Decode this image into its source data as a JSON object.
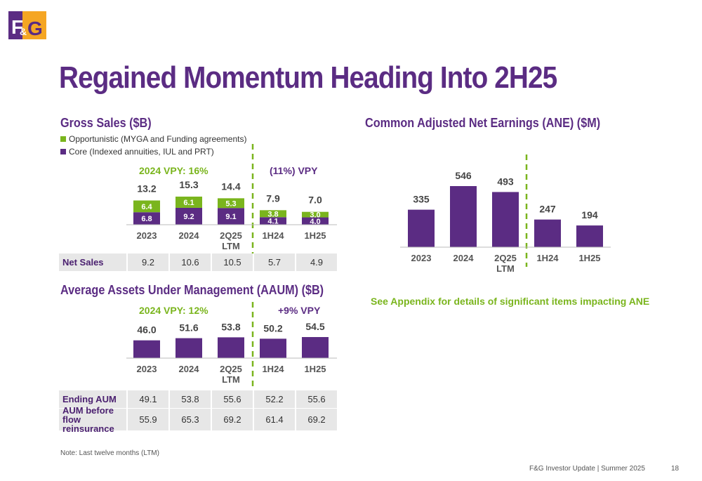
{
  "header": {
    "logo_text": "F&G",
    "title": "Regained Momentum Heading Into 2H25"
  },
  "gross_sales": {
    "title": "Gross Sales ($B)",
    "legend_opportunistic": "Opportunistic (MYGA and Funding agreements)",
    "legend_core": "Core (Indexed annuities, IUL and PRT)",
    "note_left": "2024 VPY: 16%",
    "note_right": "(11%) VPY",
    "net_sales_label": "Net Sales",
    "net_sales": [
      "9.2",
      "10.6",
      "10.5",
      "5.7",
      "4.9"
    ]
  },
  "aaum": {
    "title": "Average Assets Under Management (AAUM) ($B)",
    "note_left": "2024 VPY: 12%",
    "note_right": "+9% VPY",
    "ending_aum_label": "Ending AUM",
    "ending_aum": [
      "49.1",
      "53.8",
      "55.6",
      "52.2",
      "55.6"
    ],
    "aum_before_label": "AUM before flow reinsurance",
    "aum_before": [
      "55.9",
      "65.3",
      "69.2",
      "61.4",
      "69.2"
    ]
  },
  "ane": {
    "title": "Common Adjusted Net Earnings (ANE) ($M)",
    "appendix_note": "See Appendix for details of significant items impacting ANE"
  },
  "footer": {
    "note": "Note: Last twelve months (LTM)",
    "source": "F&G Investor Update | Summer 2025",
    "page": "18"
  },
  "colors": {
    "purple": "#5b2c83",
    "green": "#7ab51d",
    "logo_orange": "#f5a623"
  },
  "chart_data": [
    {
      "type": "bar",
      "stacked": true,
      "title": "Gross Sales ($B)",
      "categories": [
        "2023",
        "2024",
        "2Q25 LTM",
        "1H24",
        "1H25"
      ],
      "totals": [
        "13.2",
        "15.3",
        "14.4",
        "7.9",
        "7.0"
      ],
      "series": [
        {
          "name": "Core (Indexed annuities, IUL and PRT)",
          "values": [
            6.8,
            9.2,
            9.1,
            4.1,
            4.0
          ]
        },
        {
          "name": "Opportunistic (MYGA and Funding agreements)",
          "values": [
            6.4,
            6.1,
            5.3,
            3.8,
            3.0
          ]
        }
      ],
      "labels": {
        "core": [
          "6.8",
          "9.2",
          "9.1",
          "4.1",
          "4.0"
        ],
        "opportunistic": [
          "6.4",
          "6.1",
          "5.3",
          "3.8",
          "3.0"
        ]
      },
      "ylim": [
        0,
        15.3
      ],
      "legend": "top-left"
    },
    {
      "type": "bar",
      "title": "Average Assets Under Management (AAUM) ($B)",
      "categories": [
        "2023",
        "2024",
        "2Q25 LTM",
        "1H24",
        "1H25"
      ],
      "values": [
        46.0,
        51.6,
        53.8,
        50.2,
        54.5
      ],
      "labels": [
        "46.0",
        "51.6",
        "53.8",
        "50.2",
        "54.5"
      ],
      "ylim": [
        0,
        54.5
      ]
    },
    {
      "type": "bar",
      "title": "Common Adjusted Net Earnings (ANE) ($M)",
      "categories": [
        "2023",
        "2024",
        "2Q25 LTM",
        "1H24",
        "1H25"
      ],
      "values": [
        335,
        546,
        493,
        247,
        194
      ],
      "labels": [
        "335",
        "546",
        "493",
        "247",
        "194"
      ],
      "ylim": [
        0,
        546
      ]
    }
  ]
}
